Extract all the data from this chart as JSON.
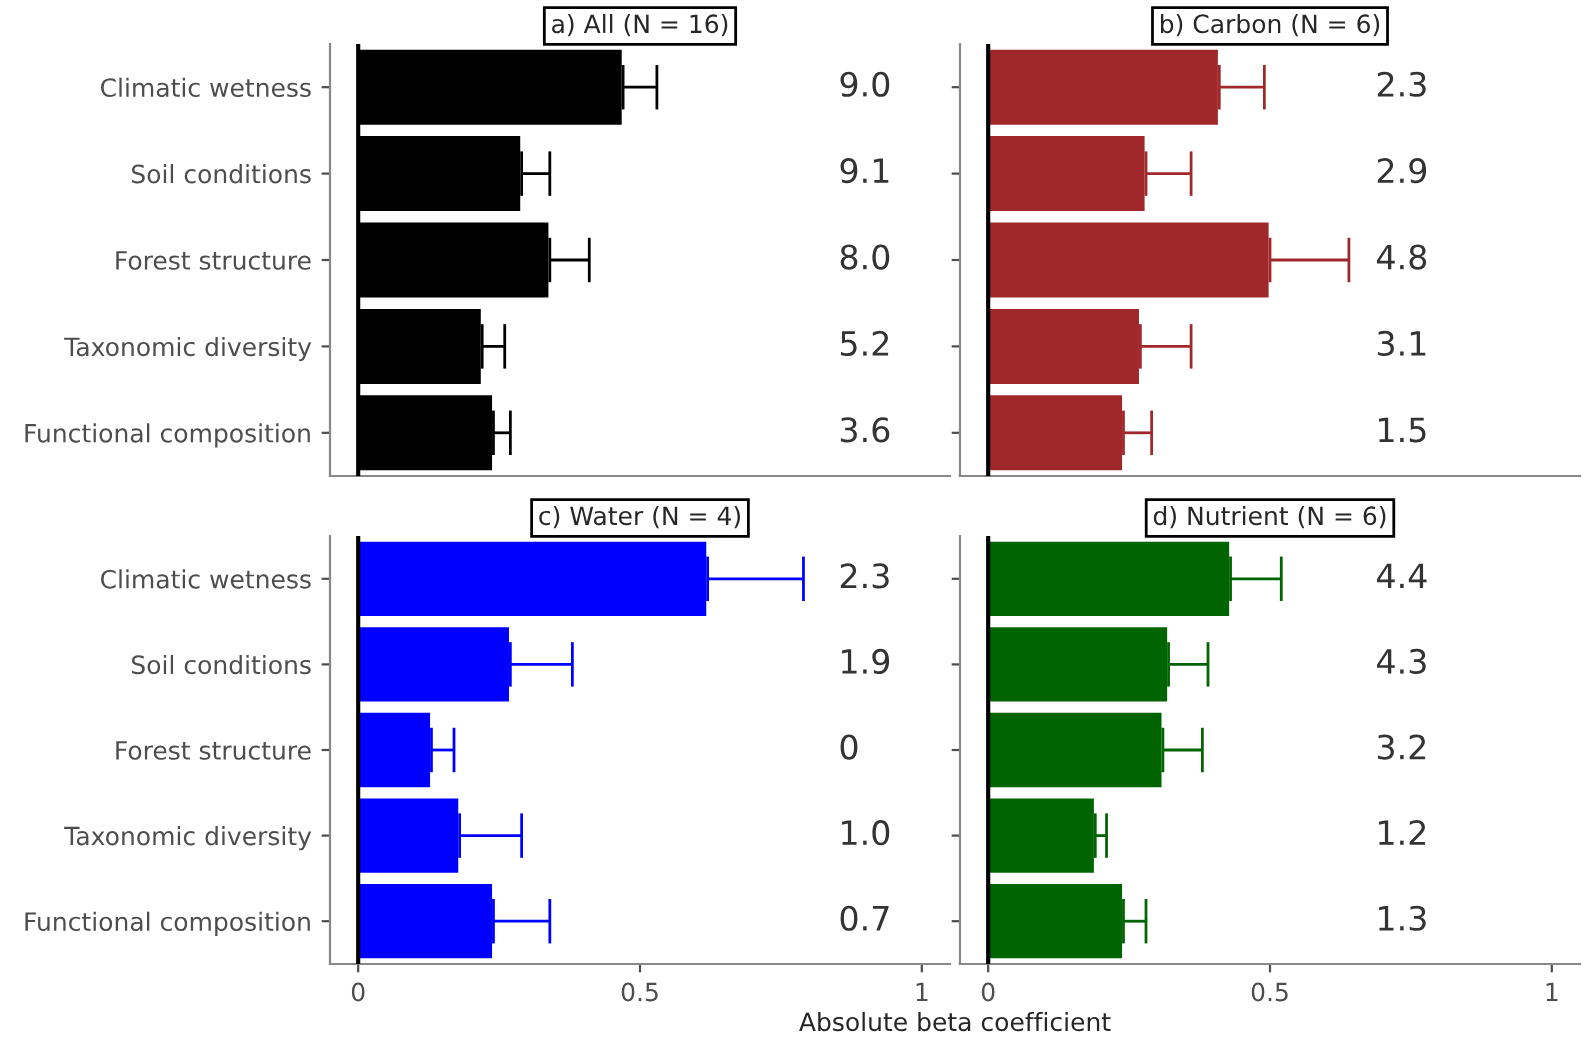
{
  "chart_data": [
    {
      "type": "bar",
      "orientation": "horizontal",
      "title": "a) All (N = 16)",
      "categories": [
        "Climatic wetness",
        "Soil conditions",
        "Forest structure",
        "Taxonomic diversity",
        "Functional composition"
      ],
      "series": [
        {
          "color": "#000000",
          "values": [
            0.47,
            0.29,
            0.34,
            0.22,
            0.24
          ],
          "errors": [
            [
              0.47,
              0.53
            ],
            [
              0.29,
              0.34
            ],
            [
              0.34,
              0.41
            ],
            [
              0.22,
              0.26
            ],
            [
              0.24,
              0.27
            ]
          ]
        }
      ],
      "annotations": [
        "9.0",
        "9.1",
        "8.0",
        "5.2",
        "3.6"
      ],
      "xlim": [
        -0.05,
        1.05
      ],
      "ref_lines": [
        {
          "axis": "x",
          "value": 0,
          "color": "#000000"
        }
      ],
      "tick_labels": "y"
    },
    {
      "type": "bar",
      "orientation": "horizontal",
      "title": "b) Carbon (N = 6)",
      "categories": [
        null,
        null,
        null,
        null,
        null
      ],
      "series": [
        {
          "color": "#a0282b",
          "values": [
            0.41,
            0.28,
            0.5,
            0.27,
            0.24
          ],
          "errors": [
            [
              0.41,
              0.49
            ],
            [
              0.28,
              0.36
            ],
            [
              0.5,
              0.64
            ],
            [
              0.27,
              0.36
            ],
            [
              0.24,
              0.29
            ]
          ]
        }
      ],
      "annotations": [
        "2.3",
        "2.9",
        "4.8",
        "3.1",
        "1.5"
      ],
      "xlim": [
        -0.05,
        1.05
      ],
      "ref_lines": [
        {
          "axis": "x",
          "value": 0,
          "color": "#000000"
        }
      ],
      "tick_labels": false
    },
    {
      "type": "bar",
      "orientation": "horizontal",
      "title": "c) Water (N = 4)",
      "xlabel": "Absolute beta coefficient",
      "categories": [
        "Climatic wetness",
        "Soil conditions",
        "Forest structure",
        "Taxonomic diversity",
        "Functional composition"
      ],
      "series": [
        {
          "color": "#0000ff",
          "values": [
            0.62,
            0.27,
            0.13,
            0.18,
            0.24
          ],
          "errors": [
            [
              0.62,
              0.79
            ],
            [
              0.27,
              0.38
            ],
            [
              0.13,
              0.17
            ],
            [
              0.18,
              0.29
            ],
            [
              0.24,
              0.34
            ]
          ]
        }
      ],
      "annotations": [
        "2.3",
        "1.9",
        "0",
        "1.0",
        "0.7"
      ],
      "xlim": [
        -0.05,
        1.05
      ],
      "xticks": [
        0,
        0.5,
        1
      ],
      "ref_lines": [
        {
          "axis": "x",
          "value": 0,
          "color": "#000000"
        }
      ]
    },
    {
      "type": "bar",
      "orientation": "horizontal",
      "title": "d) Nutrient (N = 6)",
      "categories": [
        null,
        null,
        null,
        null,
        null
      ],
      "series": [
        {
          "color": "#006400",
          "values": [
            0.43,
            0.32,
            0.31,
            0.19,
            0.24
          ],
          "errors": [
            [
              0.43,
              0.52
            ],
            [
              0.32,
              0.39
            ],
            [
              0.31,
              0.38
            ],
            [
              0.19,
              0.21
            ],
            [
              0.24,
              0.28
            ]
          ]
        }
      ],
      "annotations": [
        "4.4",
        "4.3",
        "3.2",
        "1.2",
        "1.3"
      ],
      "xlim": [
        -0.05,
        1.05
      ],
      "xticks": [
        0,
        0.5,
        1
      ],
      "ref_lines": [
        {
          "axis": "x",
          "value": 0,
          "color": "#000000"
        }
      ],
      "tick_labels": "x"
    }
  ]
}
